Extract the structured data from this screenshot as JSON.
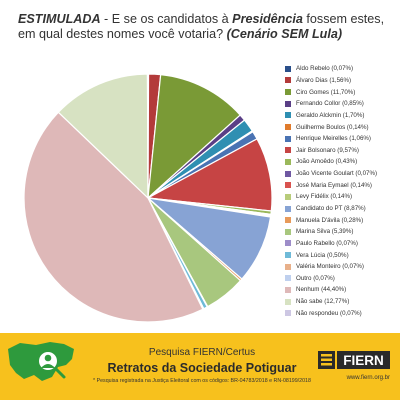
{
  "title": {
    "part1": "ESTIMULADA",
    "part2": " - E se os candidatos à ",
    "part3": "Presidência",
    "part4": " fossem estes, em qual destes nomes você votaria? ",
    "part5": "(Cenário SEM Lula)"
  },
  "chart_data": {
    "type": "pie",
    "title": "ESTIMULADA - E se os candidatos à Presidência fossem estes, em qual destes nomes você votaria? (Cenário SEM Lula)",
    "legend_position": "right",
    "categories": [
      "Aldo Rebelo",
      "Álvaro Dias",
      "Ciro Gomes",
      "Fernando Collor",
      "Geraldo Alckmin",
      "Guilherme Boulos",
      "Henrique Meirelles",
      "Jair Bolsonaro",
      "João Amoêdo",
      "João Vicente Goulart",
      "José Maria Eymael",
      "Levy Fidélix",
      "Candidato do PT",
      "Manuela D'ávila",
      "Marina Silva",
      "Paulo Rabello",
      "Vera Lúcia",
      "Valéria Monteiro",
      "Outro",
      "Nenhum",
      "Não sabe",
      "Não respondeu"
    ],
    "values": [
      0.07,
      1.56,
      11.7,
      0.85,
      1.7,
      0.14,
      1.06,
      9.57,
      0.43,
      0.07,
      0.14,
      0.14,
      8.87,
      0.28,
      5.39,
      0.07,
      0.5,
      0.07,
      0.07,
      44.4,
      12.77,
      0.07
    ],
    "colors": [
      "#2a4f8a",
      "#b33a3a",
      "#7a9a36",
      "#5a3f86",
      "#2f8fb2",
      "#e07b2c",
      "#4a73b3",
      "#c64444",
      "#9ab85a",
      "#6f58a2",
      "#d9534f",
      "#b8cc7a",
      "#87a3d4",
      "#e89a5a",
      "#a8c77e",
      "#9d8dc9",
      "#6fbad8",
      "#e8b08a",
      "#bfd0ee",
      "#deb8b8",
      "#d7e2c2",
      "#cdc7e3"
    ],
    "legend": [
      "Aldo Rebelo (0,07%)",
      "Álvaro Dias (1,56%)",
      "Ciro Gomes (11,70%)",
      "Fernando Collor (0,85%)",
      "Geraldo Alckmin (1,70%)",
      "Guilherme Boulos (0,14%)",
      "Henrique Meirelles (1,06%)",
      "Jair Bolsonaro (9,57%)",
      "João Amoêdo (0,43%)",
      "João Vicente Goulart (0,07%)",
      "José Maria Eymael (0,14%)",
      "Levy Fidélix (0,14%)",
      "Candidato do PT (8,87%)",
      "Manuela D'ávila (0,28%)",
      "Marina Silva (5,39%)",
      "Paulo Rabello (0,07%)",
      "Vera Lúcia (0,50%)",
      "Valéria  Monteiro (0,07%)",
      "Outro (0,07%)",
      "Nenhum (44,40%)",
      "Não sabe (12,77%)",
      "Não respondeu (0,07%)"
    ]
  },
  "footer": {
    "line1": "Pesquisa FIERN/Certus",
    "line2": "Retratos da Sociedade Potiguar",
    "line3": "* Pesquisa registrada na Justiça Eleitoral com os códigos: BR-04783/2018 e RN-08199/2018",
    "logo_text": "FIERN",
    "website": "www.fiern.org.br"
  },
  "colors": {
    "footer_bg": "#f7c11d",
    "map_green": "#2e9a3d"
  }
}
